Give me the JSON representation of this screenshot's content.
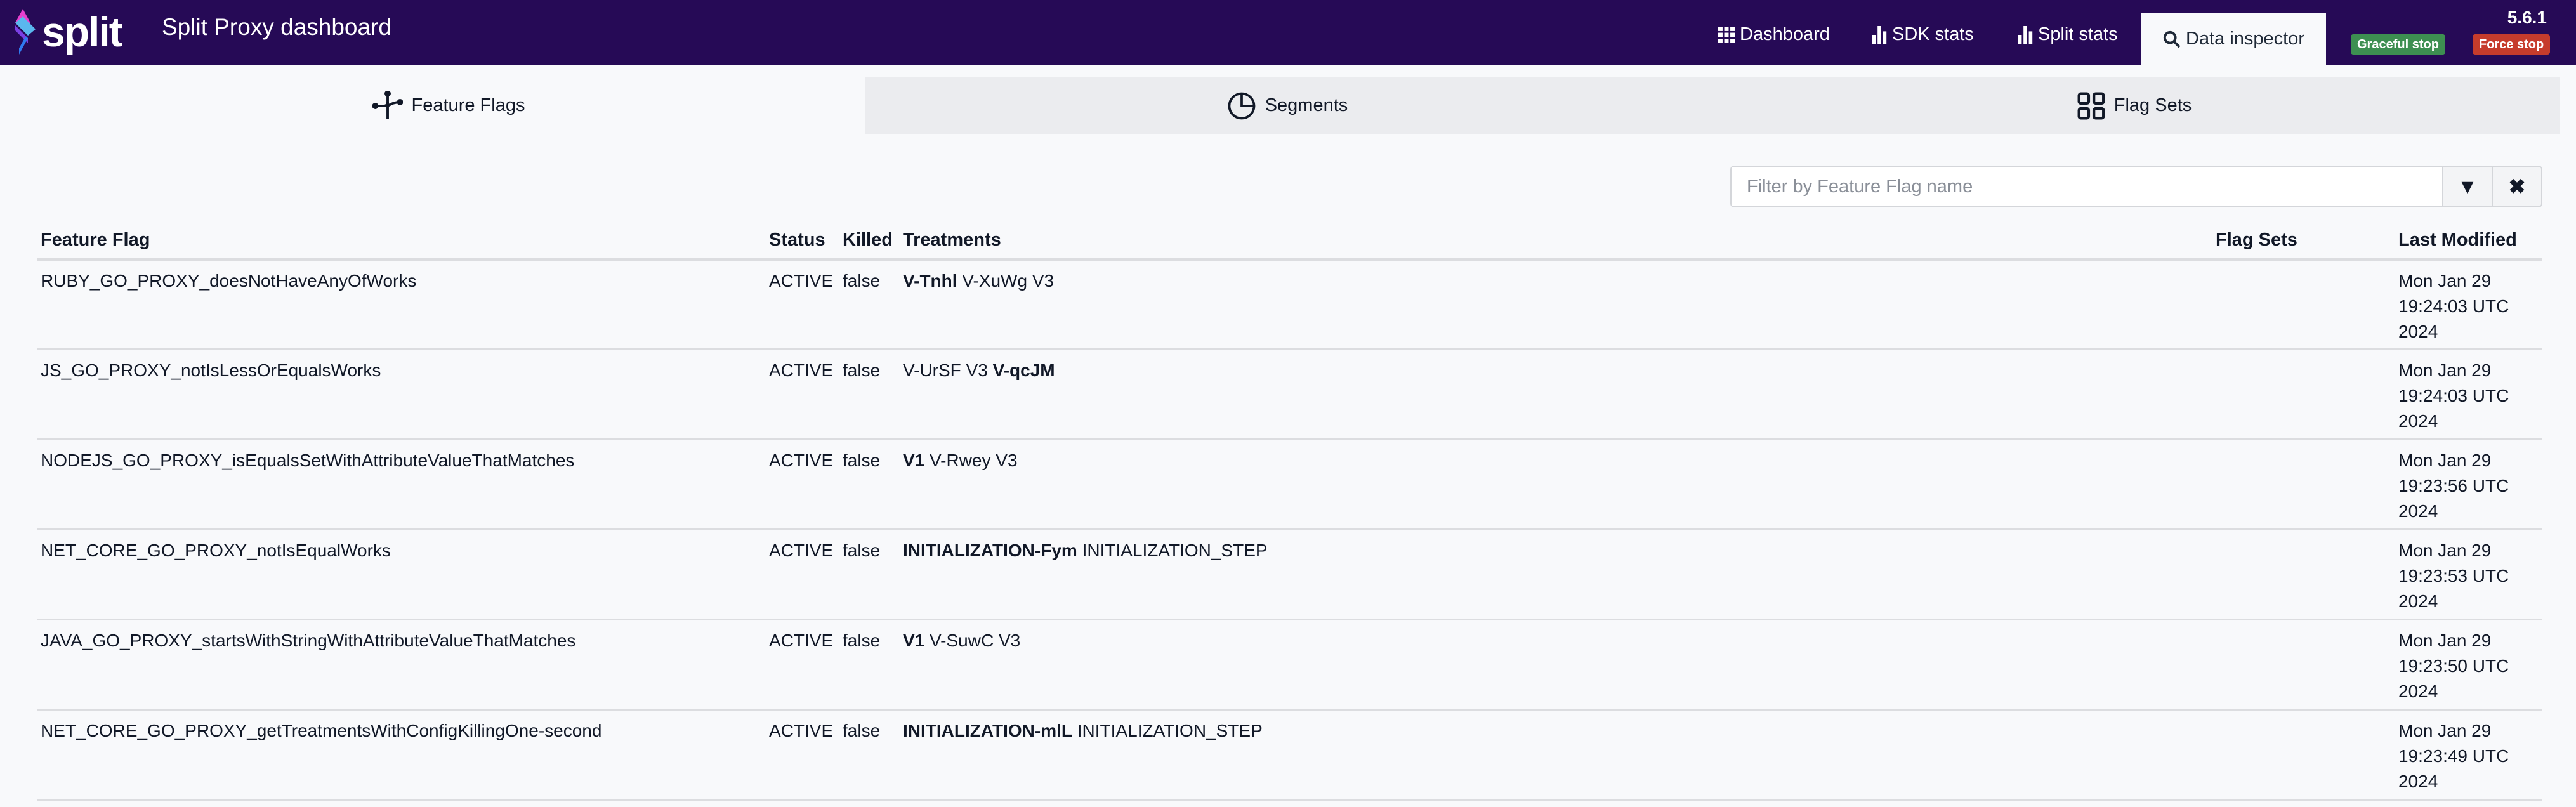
{
  "nav": {
    "logo_text": "split",
    "title": "Split Proxy dashboard",
    "items": [
      {
        "label": "Dashboard",
        "icon": "grid-icon"
      },
      {
        "label": "SDK stats",
        "icon": "bar-chart-icon"
      },
      {
        "label": "Split stats",
        "icon": "bar-chart-icon"
      },
      {
        "label": "Data inspector",
        "icon": "search-icon",
        "active": true
      }
    ],
    "version": "5.6.1",
    "graceful_stop": "Graceful stop",
    "force_stop": "Force stop"
  },
  "tabs": [
    {
      "label": "Feature Flags",
      "icon": "feature-flag-icon",
      "active": true
    },
    {
      "label": "Segments",
      "icon": "pie-icon"
    },
    {
      "label": "Flag Sets",
      "icon": "grid-squares-icon"
    }
  ],
  "filter": {
    "placeholder": "Filter by Feature Flag name",
    "value": ""
  },
  "table": {
    "headers": [
      "Feature Flag",
      "Status",
      "Killed",
      "Treatments",
      "Flag Sets",
      "Last Modified"
    ],
    "rows": [
      {
        "name": "RUBY_GO_PROXY_doesNotHaveAnyOfWorks",
        "status": "ACTIVE",
        "killed": "false",
        "treatments": [
          {
            "t": "V-Tnhl",
            "bold": true
          },
          {
            "t": "V-XuWg"
          },
          {
            "t": "V3"
          }
        ],
        "flag_sets": "",
        "modified": [
          "Mon Jan 29",
          "19:24:03 UTC",
          "2024"
        ]
      },
      {
        "name": "JS_GO_PROXY_notIsLessOrEqualsWorks",
        "status": "ACTIVE",
        "killed": "false",
        "treatments": [
          {
            "t": "V-UrSF"
          },
          {
            "t": "V3"
          },
          {
            "t": "V-qcJM",
            "bold": true
          }
        ],
        "flag_sets": "",
        "modified": [
          "Mon Jan 29",
          "19:24:03 UTC",
          "2024"
        ]
      },
      {
        "name": "NODEJS_GO_PROXY_isEqualsSetWithAttributeValueThatMatches",
        "status": "ACTIVE",
        "killed": "false",
        "treatments": [
          {
            "t": "V1",
            "bold": true
          },
          {
            "t": "V-Rwey"
          },
          {
            "t": "V3"
          }
        ],
        "flag_sets": "",
        "modified": [
          "Mon Jan 29",
          "19:23:56 UTC",
          "2024"
        ]
      },
      {
        "name": "NET_CORE_GO_PROXY_notIsEqualWorks",
        "status": "ACTIVE",
        "killed": "false",
        "treatments": [
          {
            "t": "INITIALIZATION-Fym",
            "bold": true
          },
          {
            "t": "INITIALIZATION_STEP"
          }
        ],
        "flag_sets": "",
        "modified": [
          "Mon Jan 29",
          "19:23:53 UTC",
          "2024"
        ]
      },
      {
        "name": "JAVA_GO_PROXY_startsWithStringWithAttributeValueThatMatches",
        "status": "ACTIVE",
        "killed": "false",
        "treatments": [
          {
            "t": "V1",
            "bold": true
          },
          {
            "t": "V-SuwC"
          },
          {
            "t": "V3"
          }
        ],
        "flag_sets": "",
        "modified": [
          "Mon Jan 29",
          "19:23:50 UTC",
          "2024"
        ]
      },
      {
        "name": "NET_CORE_GO_PROXY_getTreatmentsWithConfigKillingOne-second",
        "status": "ACTIVE",
        "killed": "false",
        "treatments": [
          {
            "t": "INITIALIZATION-mlL",
            "bold": true
          },
          {
            "t": "INITIALIZATION_STEP"
          }
        ],
        "flag_sets": "",
        "modified": [
          "Mon Jan 29",
          "19:23:49 UTC",
          "2024"
        ]
      }
    ]
  },
  "colors": {
    "nav_bg": "#260a56",
    "graceful": "#3d8f51",
    "force": "#c63c2c",
    "tab_inactive": "#ebecef"
  }
}
